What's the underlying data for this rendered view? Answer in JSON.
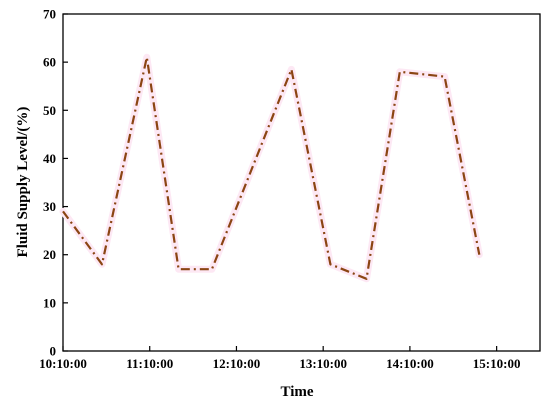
{
  "chart_data": {
    "type": "line",
    "title": "",
    "xlabel": "Time",
    "ylabel": "Fluid Supply Level/(%)",
    "x_tick_labels": [
      "10:10:00",
      "11:10:00",
      "12:10:00",
      "13:10:00",
      "14:10:00",
      "15:10:00"
    ],
    "x_tick_values": [
      0,
      60,
      120,
      180,
      240,
      300
    ],
    "xlim": [
      0,
      330
    ],
    "ylim": [
      0,
      70
    ],
    "y_ticks": [
      0,
      10,
      20,
      30,
      40,
      50,
      60,
      70
    ],
    "grid": false,
    "series": [
      {
        "color": "#8b4513",
        "line_style": "dash-dot",
        "x": [
          0,
          27,
          58,
          80,
          103,
          158,
          185,
          210,
          233,
          264,
          288
        ],
        "y": [
          29,
          18,
          61,
          17,
          17,
          58.5,
          18,
          15,
          58,
          57,
          20
        ]
      }
    ]
  }
}
